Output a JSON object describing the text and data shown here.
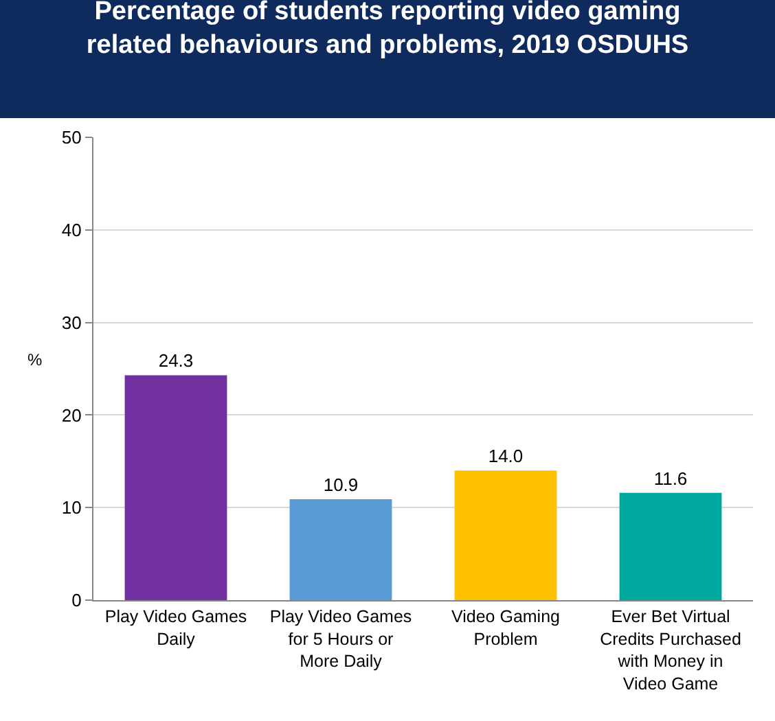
{
  "chart_data": {
    "type": "bar",
    "title": "Percentage of students reporting video gaming related behaviours and problems, 2019 OSDUHS",
    "categories": [
      "Play Video Games Daily",
      "Play Video Games for 5 Hours or More Daily",
      "Video Gaming Problem",
      "Ever Bet Virtual Credits Purchased with Money in Video Game"
    ],
    "values": [
      24.3,
      10.9,
      14.0,
      11.6
    ],
    "colors": [
      "#7030a0",
      "#5b9bd5",
      "#ffc000",
      "#00a79d"
    ],
    "value_labels": [
      "24.3",
      "10.9",
      "14.0",
      "11.6"
    ],
    "ylabel": "%",
    "ylim": [
      0,
      50
    ],
    "yticks": [
      0,
      10,
      20,
      30,
      40,
      50
    ],
    "grid": "y",
    "legend": false
  }
}
